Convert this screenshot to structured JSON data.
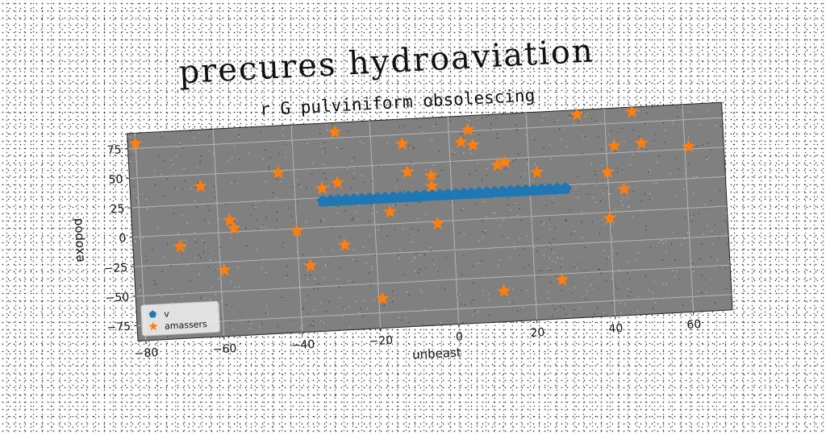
{
  "title": "precures hydroaviation",
  "subtitle": "r G pulviniform obsolescing",
  "colors": {
    "plot_bg": "#808080",
    "grid": "#b5b5b5",
    "series1": "#1f77b4",
    "series2": "#ff7f0e"
  },
  "chart_data": {
    "type": "scatter",
    "title": "r G pulviniform obsolescing",
    "xlabel": "unbeast",
    "ylabel": "exopod",
    "xlim": [
      -82,
      70
    ],
    "ylim": [
      -88,
      88
    ],
    "xticks": [
      -80,
      -60,
      -40,
      -20,
      0,
      20,
      40,
      60
    ],
    "yticks": [
      -75,
      -50,
      -25,
      0,
      25,
      50,
      75
    ],
    "grid": true,
    "legend_position": "lower-left",
    "series": [
      {
        "name": "v",
        "marker": "pentagon",
        "color": "#1f77b4",
        "x": [
          -33,
          -31,
          -29,
          -27,
          -25,
          -23,
          -21,
          -19,
          -17,
          -15,
          -13,
          -11,
          -9,
          -7,
          -5,
          -3,
          -1,
          1,
          3,
          5,
          7,
          9,
          11,
          13,
          15,
          17,
          19,
          21,
          23,
          25,
          27,
          29
        ],
        "y": [
          22,
          22,
          22,
          22,
          22,
          22,
          22,
          22,
          22,
          22,
          22,
          22,
          22,
          22,
          22,
          22,
          22,
          22,
          22,
          22,
          22,
          22,
          22,
          22,
          22,
          22,
          22,
          22,
          22,
          22,
          22,
          22
        ]
      },
      {
        "name": "amassers",
        "marker": "star",
        "color": "#ff7f0e",
        "x": [
          -80,
          -64,
          -57,
          -56,
          -70,
          -59,
          -44,
          -40,
          -37,
          -29,
          -29,
          -28,
          -33,
          -19,
          -12,
          -11,
          -5,
          -5,
          -4,
          -16,
          3,
          5,
          6,
          12,
          14,
          22,
          12,
          27,
          33,
          47,
          42,
          49,
          40,
          44,
          40,
          61
        ],
        "y": [
          79,
          40,
          10,
          3,
          -10,
          -32,
          48,
          -2,
          -32,
          80,
          37,
          -16,
          33,
          -63,
          67,
          43,
          39,
          30,
          -2,
          10,
          66,
          76,
          63,
          45,
          47,
          37,
          -62,
          -55,
          84,
          84,
          56,
          57,
          34,
          19,
          -5,
          52
        ]
      }
    ]
  }
}
